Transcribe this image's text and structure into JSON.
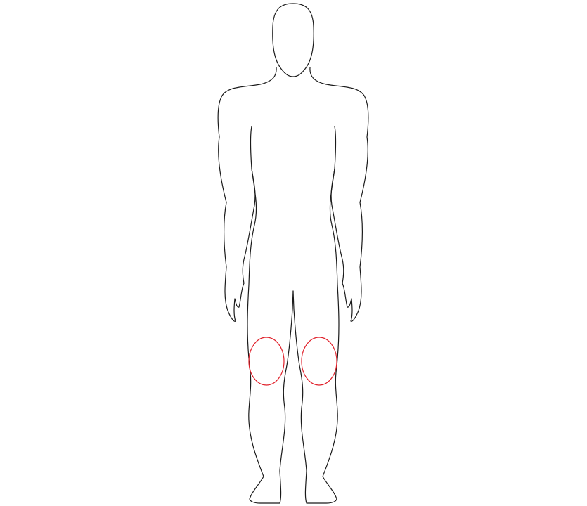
{
  "figure": {
    "type": "human-body-outline",
    "view": "front",
    "outline_color": "#1a1a1a",
    "marker_color": "#e0202a",
    "highlighted_regions": [
      "left-knee",
      "right-knee"
    ]
  }
}
